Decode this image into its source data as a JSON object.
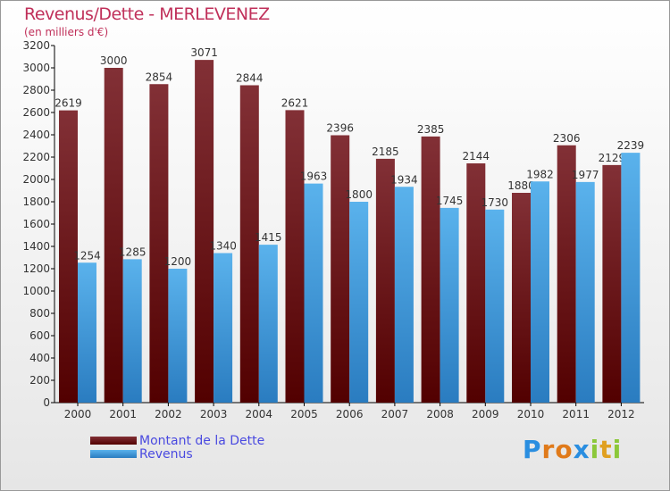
{
  "chart_data": {
    "type": "bar",
    "title": "Revenus/Dette - MERLEVENEZ",
    "subtitle": "(en milliers d'€)",
    "categories": [
      "2000",
      "2001",
      "2002",
      "2003",
      "2004",
      "2005",
      "2006",
      "2007",
      "2008",
      "2009",
      "2010",
      "2011",
      "2012"
    ],
    "series": [
      {
        "name": "Montant de la Dette",
        "color": "#7a2228",
        "values": [
          2619,
          3000,
          2854,
          3071,
          2844,
          2621,
          2396,
          2185,
          2385,
          2144,
          1880,
          2306,
          2129
        ]
      },
      {
        "name": "Revenus",
        "color": "#4aa8e8",
        "values": [
          1254,
          1285,
          1200,
          1340,
          1415,
          1963,
          1800,
          1934,
          1745,
          1730,
          1982,
          1977,
          2239
        ]
      }
    ],
    "ylim": [
      0,
      3200
    ],
    "yticks": [
      0,
      200,
      400,
      600,
      800,
      1000,
      1200,
      1400,
      1600,
      1800,
      2000,
      2200,
      2400,
      2600,
      2800,
      3000,
      3200
    ],
    "legend": "bottom-left"
  },
  "logo": "Proxiti"
}
